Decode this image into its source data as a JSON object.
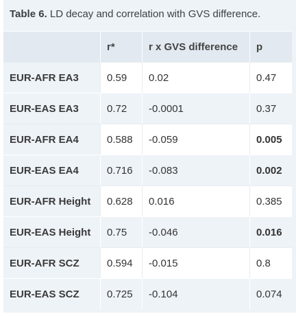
{
  "caption": {
    "label": "Table 6.",
    "text": " LD decay and correlation with GVS difference."
  },
  "headers": [
    "",
    "r*",
    "r x GVS difference",
    "p"
  ],
  "rows": [
    {
      "name": "EUR-AFR EA3",
      "r": "0.59",
      "rgvs": "0.02",
      "p": "0.47",
      "p_bold": false
    },
    {
      "name": "EUR-EAS EA3",
      "r": "0.72",
      "rgvs": "-0.0001",
      "p": "0.37",
      "p_bold": false
    },
    {
      "name": "EUR-AFR EA4",
      "r": "0.588",
      "rgvs": "-0.059",
      "p": "0.005",
      "p_bold": true
    },
    {
      "name": "EUR-EAS EA4",
      "r": "0.716",
      "rgvs": "-0.083",
      "p": "0.002",
      "p_bold": true
    },
    {
      "name": "EUR-AFR Height",
      "r": "0.628",
      "rgvs": "0.016",
      "p": "0.385",
      "p_bold": false
    },
    {
      "name": "EUR-EAS Height",
      "r": "0.75",
      "rgvs": "-0.046",
      "p": "0.016",
      "p_bold": true
    },
    {
      "name": "EUR-AFR SCZ",
      "r": "0.594",
      "rgvs": "-0.015",
      "p": "0.8",
      "p_bold": false
    },
    {
      "name": "EUR-EAS SCZ",
      "r": "0.725",
      "rgvs": "-0.104",
      "p": "0.074",
      "p_bold": false
    }
  ]
}
